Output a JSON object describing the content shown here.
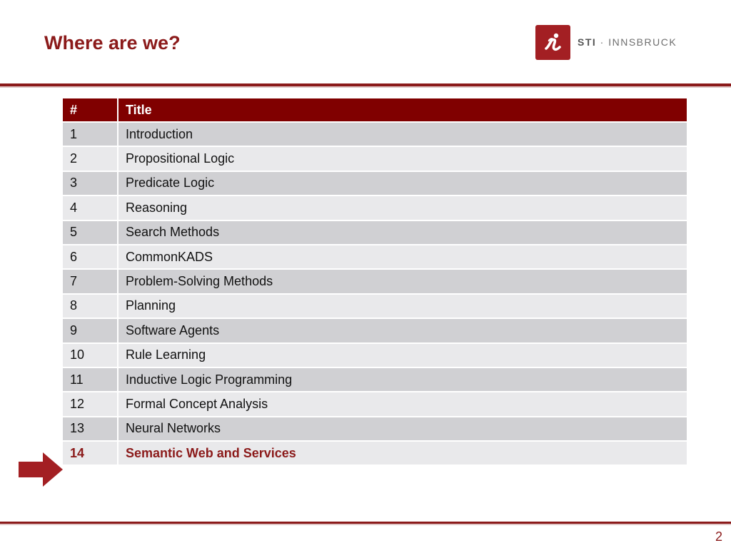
{
  "slide": {
    "title": "Where are we?",
    "page_number": "2"
  },
  "logo": {
    "brand": "STI",
    "separator": "·",
    "name": "INNSBRUCK",
    "color": "#a31f23"
  },
  "table": {
    "headers": [
      "#",
      "Title"
    ],
    "rows": [
      {
        "num": "1",
        "title": "Introduction"
      },
      {
        "num": "2",
        "title": "Propositional Logic"
      },
      {
        "num": "3",
        "title": "Predicate Logic"
      },
      {
        "num": "4",
        "title": "Reasoning"
      },
      {
        "num": "5",
        "title": "Search Methods"
      },
      {
        "num": "6",
        "title": "CommonKADS"
      },
      {
        "num": "7",
        "title": "Problem-Solving Methods"
      },
      {
        "num": "8",
        "title": "Planning"
      },
      {
        "num": "9",
        "title": "Software Agents"
      },
      {
        "num": "10",
        "title": "Rule Learning"
      },
      {
        "num": "11",
        "title": "Inductive Logic Programming"
      },
      {
        "num": "12",
        "title": "Formal Concept Analysis"
      },
      {
        "num": "13",
        "title": "Neural Networks"
      },
      {
        "num": "14",
        "title": "Semantic Web and Services"
      }
    ],
    "current_row": 14
  },
  "colors": {
    "accent": "#8b1a1a",
    "header_bg": "#800000",
    "row_dark": "#d0d0d3",
    "row_light": "#e9e9eb"
  },
  "icons": {
    "current_marker": "right-arrow-icon",
    "logo_mark": "sti-logo-icon"
  }
}
